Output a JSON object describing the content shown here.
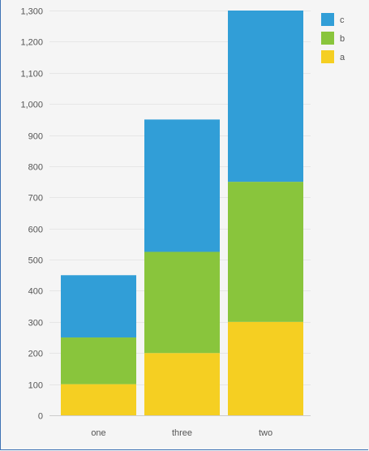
{
  "chart_data": {
    "type": "bar",
    "stacked": true,
    "categories": [
      "one",
      "three",
      "two"
    ],
    "series": [
      {
        "name": "a",
        "color": "#f5cf22",
        "values": [
          100,
          200,
          300
        ]
      },
      {
        "name": "b",
        "color": "#89c53c",
        "values": [
          150,
          325,
          450
        ]
      },
      {
        "name": "c",
        "color": "#319ed7",
        "values": [
          200,
          425,
          550
        ]
      }
    ],
    "ylim": [
      0,
      1300
    ],
    "yticks": [
      "0",
      "100",
      "200",
      "300",
      "400",
      "500",
      "600",
      "700",
      "800",
      "900",
      "1,000",
      "1,100",
      "1,200",
      "1,300"
    ],
    "ytick_values": [
      0,
      100,
      200,
      300,
      400,
      500,
      600,
      700,
      800,
      900,
      1000,
      1100,
      1200,
      1300
    ],
    "grid": true,
    "legend": {
      "placement": "top-right",
      "order": [
        "c",
        "b",
        "a"
      ]
    }
  }
}
